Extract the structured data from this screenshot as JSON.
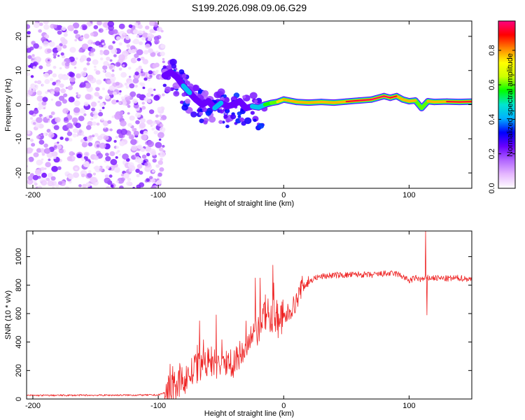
{
  "title": "S199.2026.098.09.06.G29",
  "chart_data": [
    {
      "type": "heatmap",
      "title": "",
      "xlabel": "Height of straight line (km)",
      "ylabel": "Frequency (Hz)",
      "xlim": [
        -205,
        150
      ],
      "ylim": [
        -24.5,
        24.5
      ],
      "xticks": [
        -200,
        -100,
        0,
        100
      ],
      "yticks": [
        -20,
        -10,
        0,
        10,
        20
      ],
      "colorbar": {
        "label": "Normalized spectral amplitude",
        "range": [
          0.0,
          0.97
        ],
        "ticks": [
          0.0,
          0.2,
          0.4,
          0.6,
          0.8
        ],
        "tick_labels": [
          "0.0",
          "0.2",
          "0.4",
          "0.6",
          "0.8"
        ],
        "colors": [
          "#ffffff",
          "#e6b8ff",
          "#b266ff",
          "#6a00ff",
          "#0000ff",
          "#00b0ff",
          "#00e5d0",
          "#00ff00",
          "#ccff00",
          "#ffff00",
          "#ff8800",
          "#ff0000",
          "#ff0080"
        ]
      },
      "noise_region_x": [
        -205,
        -95
      ],
      "ridge": {
        "x": [
          -95,
          -90,
          -85,
          -80,
          -75,
          -70,
          -65,
          -60,
          -55,
          -50,
          -45,
          -40,
          -35,
          -30,
          -25,
          -20,
          -15,
          -10,
          -5,
          0,
          10,
          20,
          30,
          40,
          50,
          60,
          70,
          80,
          85,
          90,
          95,
          100,
          105,
          110,
          115,
          120,
          130,
          140,
          150
        ],
        "freq": [
          8.5,
          9.5,
          8.0,
          5.5,
          3.5,
          1.5,
          0.0,
          1.0,
          -1.0,
          0.5,
          -0.5,
          0.0,
          1.0,
          -1.0,
          -0.5,
          -0.8,
          0.0,
          0.5,
          0.8,
          1.5,
          0.8,
          0.6,
          0.8,
          0.6,
          0.9,
          1.2,
          1.5,
          2.5,
          2.0,
          2.5,
          1.5,
          1.0,
          1.2,
          -1.0,
          1.0,
          0.8,
          0.9,
          0.8,
          0.9
        ],
        "amp": [
          0.15,
          0.35,
          0.3,
          0.4,
          0.45,
          0.35,
          0.4,
          0.35,
          0.45,
          0.4,
          0.35,
          0.35,
          0.4,
          0.35,
          0.45,
          0.5,
          0.55,
          0.6,
          0.7,
          0.8,
          0.85,
          0.88,
          0.9,
          0.88,
          0.92,
          0.93,
          0.95,
          0.96,
          0.95,
          0.9,
          0.92,
          0.85,
          0.88,
          0.55,
          0.88,
          0.9,
          0.92,
          0.93,
          0.93
        ]
      }
    },
    {
      "type": "line",
      "title": "",
      "xlabel": "Height of straight line (km)",
      "ylabel": "SNR (10 * v/v)",
      "xlim": [
        -205,
        150
      ],
      "ylim": [
        0,
        1180
      ],
      "xticks": [
        -200,
        -100,
        0,
        100
      ],
      "yticks": [
        0,
        200,
        400,
        600,
        800,
        1000
      ],
      "color": "#ee2222",
      "baseline": {
        "x": [
          -205,
          -100,
          -90,
          -80,
          -70,
          -60,
          -50,
          -40,
          -35,
          -30,
          -25,
          -20,
          -15,
          -10,
          -5,
          0,
          5,
          10,
          15,
          20,
          25,
          30,
          40,
          50,
          60,
          70,
          80,
          90,
          95,
          100,
          105,
          110,
          115,
          120,
          130,
          140,
          150
        ],
        "snr": [
          25,
          28,
          60,
          130,
          210,
          260,
          230,
          260,
          300,
          350,
          420,
          480,
          600,
          600,
          560,
          560,
          620,
          680,
          800,
          820,
          850,
          860,
          870,
          870,
          875,
          870,
          880,
          880,
          860,
          830,
          850,
          840,
          850,
          850,
          845,
          850,
          840
        ]
      },
      "spikes": [
        {
          "x": -23,
          "snr": 850
        },
        {
          "x": -19,
          "snr": 850
        },
        {
          "x": -9,
          "snr": 940
        },
        {
          "x": 113,
          "snr": 1180
        },
        {
          "x": 114,
          "snr": 590
        }
      ]
    }
  ]
}
